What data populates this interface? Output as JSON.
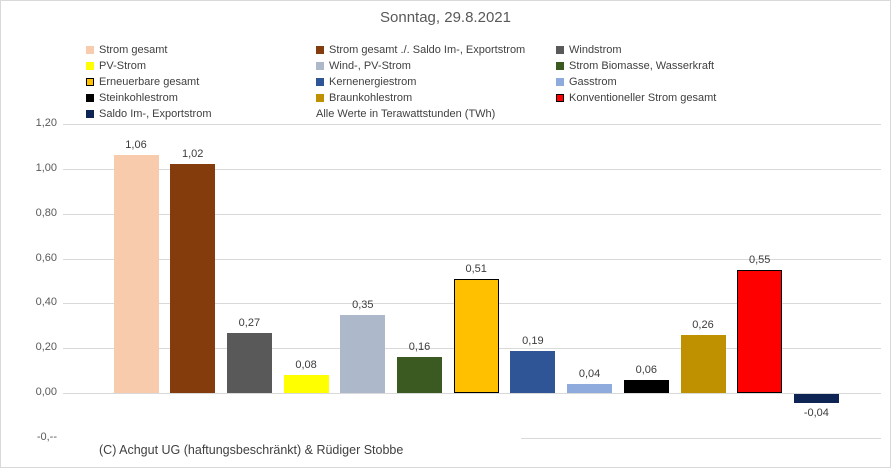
{
  "title": "Sonntag, 29.8.2021",
  "footer": "(C) Achgut UG (haftungsbeschränkt) & Rüdiger Stobbe",
  "legend": {
    "columns": [
      {
        "items": [
          {
            "label": "Strom gesamt",
            "color": "#F8CBAD"
          },
          {
            "label": "PV-Strom",
            "color": "#FFFF00"
          },
          {
            "label": "Erneuerbare gesamt",
            "color": "#FFC000",
            "border": true
          },
          {
            "label": "Steinkohlestrom",
            "color": "#000000"
          },
          {
            "label": "Saldo Im-, Exportstrom",
            "color": "#0E2455"
          }
        ]
      },
      {
        "items": [
          {
            "label": "Strom gesamt ./. Saldo Im-, Exportstrom",
            "color": "#843C0C"
          },
          {
            "label": "Wind-, PV-Strom",
            "color": "#ADB9CA"
          },
          {
            "label": "Kernenergiestrom",
            "color": "#2F5597"
          },
          {
            "label": "Braunkohlestrom",
            "color": "#BF9000"
          },
          {
            "label": "Alle Werte in Terawattstunden (TWh)",
            "note": true
          }
        ]
      },
      {
        "items": [
          {
            "label": "Windstrom",
            "color": "#595959"
          },
          {
            "label": "Strom Biomasse, Wasserkraft",
            "color": "#3A5A22"
          },
          {
            "label": "Gasstrom",
            "color": "#8FAADC"
          },
          {
            "label": "Konventioneller Strom gesamt",
            "color": "#FF0000",
            "border": true
          }
        ]
      }
    ]
  },
  "chart_data": {
    "type": "bar",
    "title": "Sonntag, 29.8.2021",
    "unit_note": "Alle Werte in Terawattstunden (TWh)",
    "xlabel": "",
    "ylabel": "",
    "ylim": [
      -0.2,
      1.2
    ],
    "grid": true,
    "legend_position": "top",
    "y_ticks": [
      {
        "label": "1,20",
        "value": 1.2
      },
      {
        "label": "1,00",
        "value": 1.0
      },
      {
        "label": "0,80",
        "value": 0.8
      },
      {
        "label": "0,60",
        "value": 0.6
      },
      {
        "label": "0,40",
        "value": 0.4
      },
      {
        "label": "0,20",
        "value": 0.2
      },
      {
        "label": "0,00",
        "value": 0.0
      },
      {
        "label": "-0,--",
        "value": -0.2,
        "partial": true
      }
    ],
    "bars": [
      {
        "label": "Strom gesamt",
        "value": 1.06,
        "display": "1,06",
        "color": "#F8CBAD"
      },
      {
        "label": "Strom gesamt ./. Saldo Im-, Exportstrom",
        "value": 1.02,
        "display": "1,02",
        "color": "#843C0C"
      },
      {
        "label": "Windstrom",
        "value": 0.27,
        "display": "0,27",
        "color": "#595959"
      },
      {
        "label": "PV-Strom",
        "value": 0.08,
        "display": "0,08",
        "color": "#FFFF00"
      },
      {
        "label": "Wind-, PV-Strom",
        "value": 0.35,
        "display": "0,35",
        "color": "#ADB9CA"
      },
      {
        "label": "Strom Biomasse, Wasserkraft",
        "value": 0.16,
        "display": "0,16",
        "color": "#3A5A22"
      },
      {
        "label": "Erneuerbare gesamt",
        "value": 0.51,
        "display": "0,51",
        "color": "#FFC000",
        "border": true
      },
      {
        "label": "Kernenergiestrom",
        "value": 0.19,
        "display": "0,19",
        "color": "#2F5597"
      },
      {
        "label": "Gasstrom",
        "value": 0.04,
        "display": "0,04",
        "color": "#8FAADC"
      },
      {
        "label": "Steinkohlestrom",
        "value": 0.06,
        "display": "0,06",
        "color": "#000000"
      },
      {
        "label": "Braunkohlestrom",
        "value": 0.26,
        "display": "0,26",
        "color": "#BF9000"
      },
      {
        "label": "Konventioneller Strom gesamt",
        "value": 0.55,
        "display": "0,55",
        "color": "#FF0000",
        "border": true
      },
      {
        "label": "Saldo Im-, Exportstrom",
        "value": -0.04,
        "display": "-0,04",
        "color": "#0E2455"
      }
    ]
  }
}
